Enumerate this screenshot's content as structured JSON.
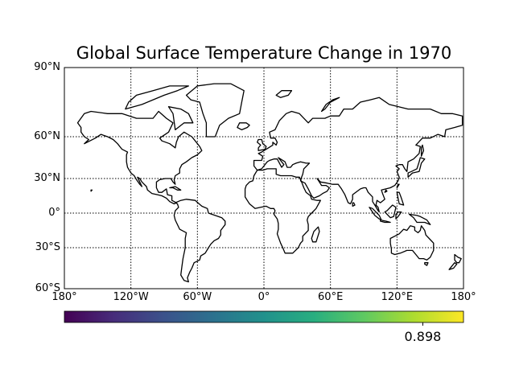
{
  "title": "Global Surface Temperature Change in 1970",
  "map": {
    "projection": "Mercator",
    "lon_range": [
      -180,
      180
    ],
    "lat_range": [
      -60,
      90
    ],
    "graticule": "dotted",
    "coastline_color": "#000000",
    "lat_ticks": [
      {
        "lat": 90,
        "label": "90°N"
      },
      {
        "lat": 60,
        "label": "60°N"
      },
      {
        "lat": 30,
        "label": "30°N"
      },
      {
        "lat": 0,
        "label": "0°"
      },
      {
        "lat": -30,
        "label": "30°S"
      },
      {
        "lat": -60,
        "label": "60°S"
      }
    ],
    "lon_ticks": [
      {
        "lon": -180,
        "label": "180°"
      },
      {
        "lon": -120,
        "label": "120°W"
      },
      {
        "lon": -60,
        "label": "60°W"
      },
      {
        "lon": 0,
        "label": "0°"
      },
      {
        "lon": 60,
        "label": "60°E"
      },
      {
        "lon": 120,
        "label": "120°E"
      },
      {
        "lon": 180,
        "label": "180°"
      }
    ]
  },
  "colorbar": {
    "colormap": "viridis",
    "tick_label": "0.898",
    "tick_value": 0.898,
    "colors": [
      "#440154",
      "#472d7b",
      "#3b528b",
      "#2c728e",
      "#21918c",
      "#28ae80",
      "#5ec962",
      "#addc30",
      "#fde725"
    ]
  }
}
